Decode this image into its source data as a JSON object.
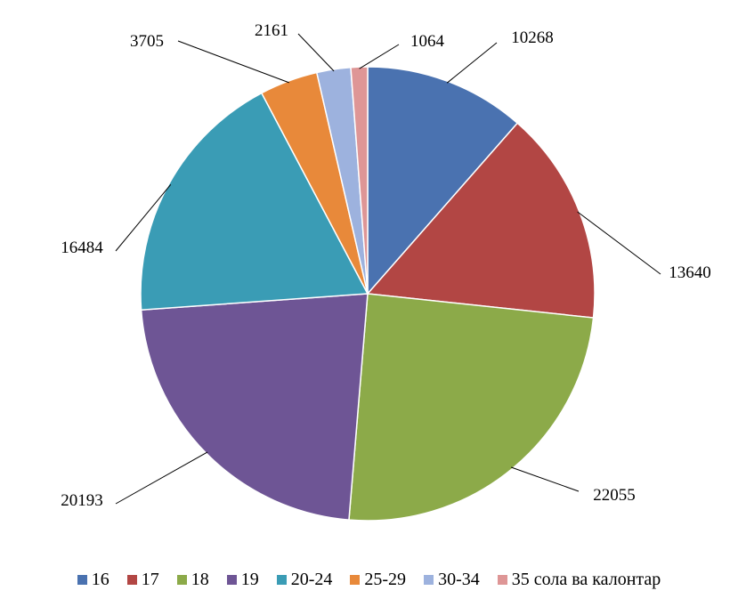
{
  "chart_data": {
    "type": "pie",
    "title": "",
    "categories": [
      "16",
      "17",
      "18",
      "19",
      "20-24",
      "25-29",
      "30-34",
      "35 сола ва калонтар"
    ],
    "values": [
      10268,
      13640,
      22055,
      20193,
      16484,
      3705,
      2161,
      1064
    ],
    "value_labels": [
      "10268",
      "13640",
      "22055",
      "20193",
      "16484",
      "3705",
      "2161",
      "1064"
    ],
    "colors": [
      "#4A72B0",
      "#B24644",
      "#8CAA49",
      "#6E5595",
      "#3A9CB5",
      "#E8893A",
      "#9DB2DE",
      "#DE9696"
    ],
    "start_angle": "12 o'clock",
    "direction": "clockwise",
    "legend": "bottom"
  }
}
